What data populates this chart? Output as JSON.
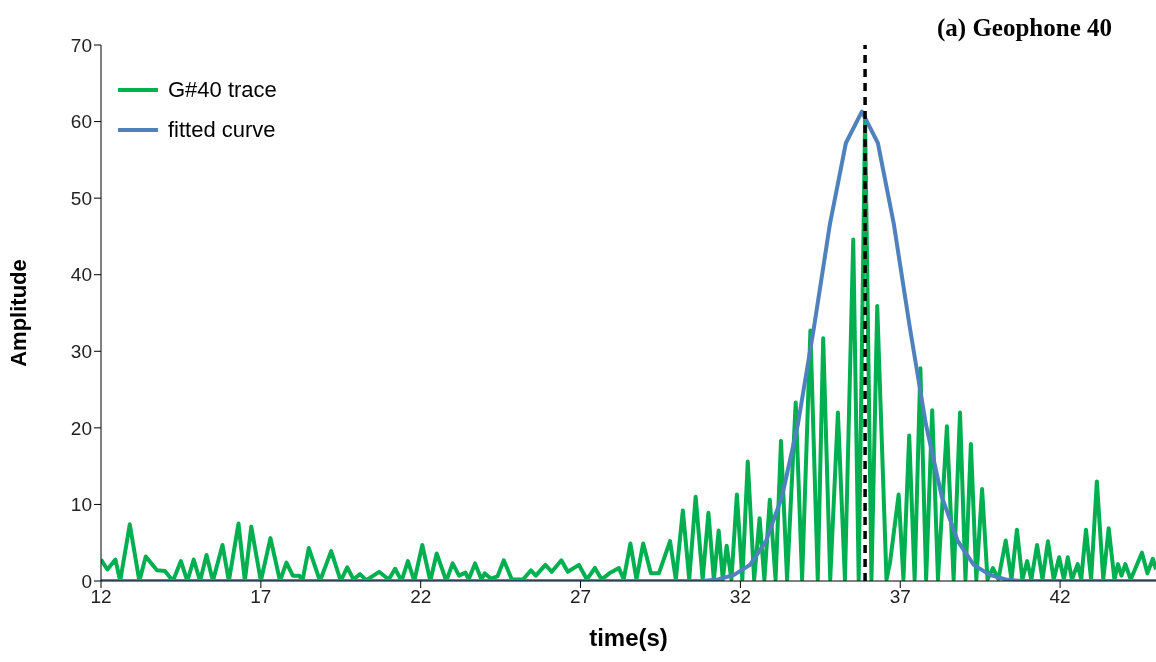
{
  "chart_data": {
    "type": "line",
    "title": "(a) Geophone 40",
    "xlabel": "time(s)",
    "ylabel": "Amplitude",
    "xlim": [
      12,
      45
    ],
    "xticks": [
      12,
      17,
      22,
      27,
      32,
      37,
      42
    ],
    "ylim": [
      0,
      70
    ],
    "yticks": [
      0,
      10,
      20,
      30,
      40,
      50,
      60,
      70
    ],
    "grid": false,
    "legend": "top left",
    "marker": "none",
    "line_style": "solid",
    "ref_lines": [
      {
        "axis": "x",
        "value": 35.9,
        "color": "#000000",
        "line_style": "dashed"
      }
    ],
    "series": [
      {
        "name": "G#40 trace",
        "color": "#00b050",
        "x": [
          12.0,
          12.2,
          12.45,
          12.6,
          12.9,
          13.2,
          13.4,
          13.75,
          14.0,
          14.25,
          14.5,
          14.7,
          14.9,
          15.1,
          15.3,
          15.5,
          15.8,
          16.0,
          16.3,
          16.5,
          16.7,
          17.0,
          17.3,
          17.6,
          17.8,
          18.0,
          18.2,
          18.3,
          18.5,
          18.85,
          19.2,
          19.5,
          19.7,
          19.9,
          20.1,
          20.3,
          20.7,
          21.0,
          21.2,
          21.4,
          21.6,
          21.8,
          22.05,
          22.3,
          22.5,
          22.8,
          23.0,
          23.2,
          23.4,
          23.5,
          23.7,
          23.9,
          24.0,
          24.2,
          24.4,
          24.6,
          24.85,
          25.2,
          25.45,
          25.6,
          25.9,
          26.1,
          26.4,
          26.6,
          26.95,
          27.2,
          27.45,
          27.66,
          27.9,
          28.2,
          28.35,
          28.56,
          28.75,
          28.96,
          29.2,
          29.45,
          29.8,
          29.98,
          30.2,
          30.4,
          30.6,
          30.82,
          31.0,
          31.17,
          31.32,
          31.45,
          31.57,
          31.72,
          31.89,
          32.06,
          32.23,
          32.43,
          32.6,
          32.75,
          32.92,
          33.1,
          33.27,
          33.46,
          33.73,
          33.93,
          34.19,
          34.42,
          34.59,
          34.81,
          35.05,
          35.27,
          35.53,
          35.7,
          35.9,
          36.1,
          36.28,
          36.57,
          36.68,
          36.95,
          37.1,
          37.28,
          37.45,
          37.63,
          37.81,
          38.0,
          38.18,
          38.46,
          38.67,
          38.87,
          39.04,
          39.21,
          39.38,
          39.56,
          39.73,
          39.9,
          40.07,
          40.3,
          40.48,
          40.65,
          40.82,
          40.97,
          41.1,
          41.28,
          41.45,
          41.62,
          41.8,
          41.97,
          42.12,
          42.24,
          42.37,
          42.55,
          42.66,
          42.81,
          42.97,
          43.15,
          43.35,
          43.52,
          43.7,
          43.81,
          43.92,
          44.04,
          44.21,
          44.56,
          44.73,
          44.9,
          45.0
        ],
        "values": [
          2.8,
          1.5,
          2.8,
          0,
          7.4,
          0,
          3.2,
          1.4,
          1.3,
          0,
          2.6,
          0,
          2.8,
          0,
          3.4,
          0,
          4.7,
          0,
          7.5,
          0,
          7.1,
          0,
          5.6,
          0,
          2.4,
          0.7,
          0.7,
          0,
          4.3,
          0,
          3.9,
          0,
          1.8,
          0.2,
          0.9,
          0.1,
          1.2,
          0.2,
          1.6,
          0,
          2.6,
          0,
          4.7,
          0,
          3.6,
          0,
          2.3,
          0.7,
          1.1,
          0.2,
          2.3,
          0.2,
          1.0,
          0.3,
          0.6,
          2.7,
          0.2,
          0.2,
          1.4,
          0.7,
          2.1,
          1.2,
          2.7,
          1.2,
          2.1,
          0.2,
          1.7,
          0.2,
          1.0,
          1.7,
          0.2,
          4.9,
          0.2,
          4.9,
          1.0,
          1.0,
          5.2,
          0.2,
          9.2,
          0.2,
          11.0,
          0.2,
          8.9,
          0.2,
          6.6,
          0.2,
          4.6,
          0.2,
          11.3,
          0.2,
          15.6,
          0.2,
          8.2,
          0.2,
          10.6,
          0.2,
          18.3,
          0.2,
          23.3,
          0.2,
          32.7,
          0.2,
          31.7,
          0.2,
          22.0,
          0.2,
          44.6,
          0.2,
          60.2,
          0.2,
          35.9,
          0.2,
          2.4,
          11.3,
          0.2,
          19.0,
          0.2,
          27.8,
          0.2,
          22.3,
          0.2,
          20.2,
          0.2,
          22.0,
          0.2,
          17.9,
          0.2,
          12.0,
          0.2,
          1.7,
          0.2,
          5.3,
          0.2,
          6.7,
          0.2,
          2.6,
          0.2,
          4.7,
          0.2,
          5.2,
          0.2,
          3.1,
          0.2,
          3.1,
          0.2,
          2.2,
          0.2,
          6.7,
          0.2,
          13.0,
          0.2,
          6.9,
          0.2,
          2.2,
          0.7,
          2.2,
          0.2,
          3.7,
          1.0,
          2.9,
          1.5
        ]
      },
      {
        "name": "fitted curve",
        "color": "#4f81bd",
        "x": [
          12,
          30.8,
          31.3,
          31.8,
          32.3,
          32.8,
          33.3,
          33.8,
          34.3,
          34.8,
          35.3,
          35.8,
          36.3,
          36.8,
          37.3,
          37.8,
          38.3,
          38.8,
          39.3,
          39.8,
          40.3,
          40.8,
          45
        ],
        "values": [
          0,
          0,
          0.2,
          0.8,
          2.1,
          5.2,
          11.0,
          20.5,
          33.1,
          46.6,
          57.2,
          61.3,
          57.2,
          46.6,
          33.1,
          20.5,
          11.0,
          5.2,
          2.1,
          0.8,
          0.2,
          0,
          0
        ]
      }
    ]
  }
}
